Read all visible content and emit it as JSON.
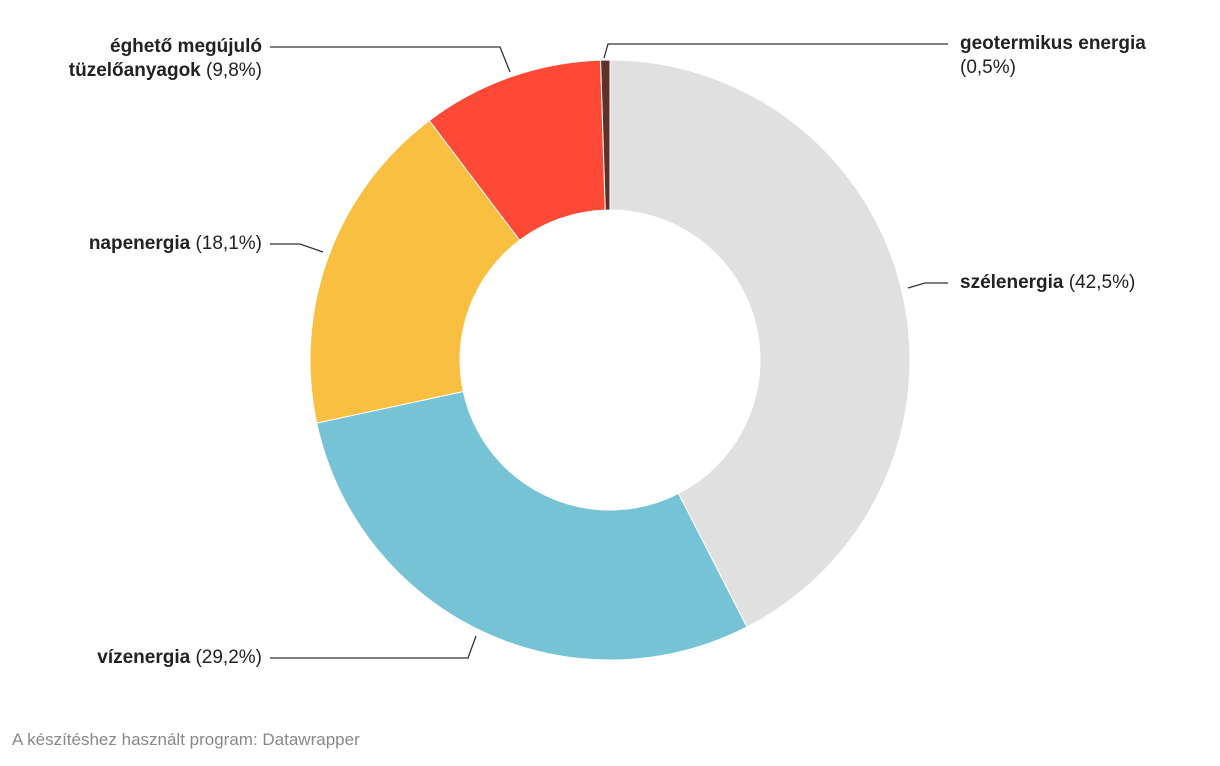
{
  "chart_data": {
    "type": "donut",
    "categories": [
      "szélenergia",
      "vízenergia",
      "napenergia",
      "éghető megújuló tüzelőanyagok",
      "geotermikus energia"
    ],
    "values": [
      42.5,
      29.2,
      18.1,
      9.8,
      0.5
    ],
    "value_labels": [
      "(42,5%)",
      "(29,2%)",
      "(18,1%)",
      "(9,8%)",
      "(0,5%)"
    ],
    "colors": [
      "#e0e0e0",
      "#76c3d6",
      "#f9bf41",
      "#fe4937",
      "#5e3229"
    ],
    "source": "A készítéshez használt program: Datawrapper"
  }
}
